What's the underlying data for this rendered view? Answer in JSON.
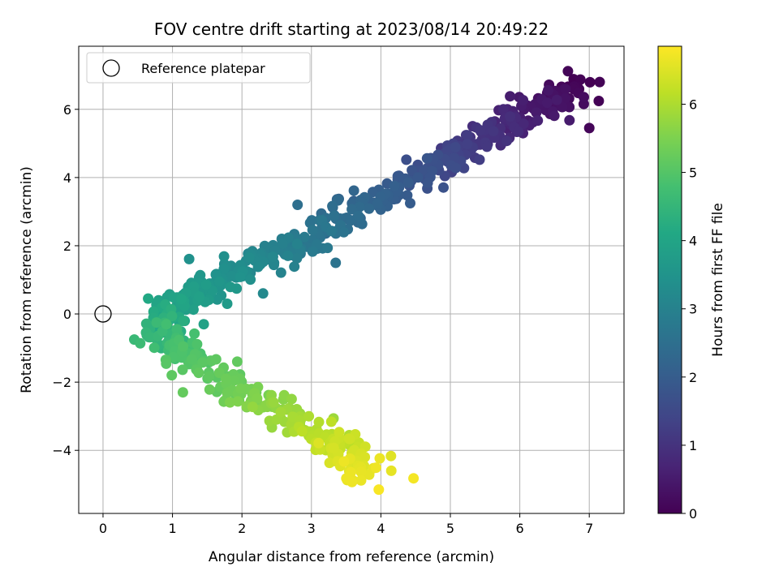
{
  "chart_data": {
    "type": "scatter",
    "title": "FOV centre drift starting at 2023/08/14 20:49:22",
    "xlabel": "Angular distance from reference (arcmin)",
    "ylabel": "Rotation from reference (arcmin)",
    "xlim": [
      -0.35,
      7.5
    ],
    "ylim": [
      -5.85,
      7.85
    ],
    "x_ticks": [
      0,
      1,
      2,
      3,
      4,
      5,
      6,
      7
    ],
    "y_ticks": [
      -4,
      -2,
      0,
      2,
      4,
      6
    ],
    "grid": true,
    "colormap": "viridis",
    "colorbar": {
      "label": "Hours from first FF file",
      "range": [
        0,
        6.85
      ],
      "ticks": [
        0,
        1,
        2,
        3,
        4,
        5,
        6
      ]
    },
    "legend": {
      "placement": "top-left",
      "entries": [
        {
          "label": "Reference platepar",
          "marker": "open-circle",
          "color": "#000000"
        }
      ]
    },
    "reference_point": {
      "x": 0,
      "y": 0
    },
    "track": {
      "description_points": "trajectory knots used to lay out the drift; each point [x_arcmin, y_arcmin, hours]",
      "knots": [
        [
          6.8,
          6.7,
          0.0
        ],
        [
          6.5,
          6.3,
          0.3
        ],
        [
          6.0,
          5.8,
          0.6
        ],
        [
          5.6,
          5.4,
          0.9
        ],
        [
          5.2,
          4.9,
          1.2
        ],
        [
          4.8,
          4.3,
          1.6
        ],
        [
          4.3,
          3.8,
          1.9
        ],
        [
          3.8,
          3.2,
          2.2
        ],
        [
          3.3,
          2.6,
          2.5
        ],
        [
          2.8,
          2.0,
          2.8
        ],
        [
          2.3,
          1.6,
          3.1
        ],
        [
          1.8,
          1.1,
          3.4
        ],
        [
          1.4,
          0.6,
          3.7
        ],
        [
          1.0,
          0.2,
          4.0
        ],
        [
          0.8,
          -0.4,
          4.4
        ],
        [
          1.1,
          -1.0,
          4.8
        ],
        [
          1.5,
          -1.7,
          5.1
        ],
        [
          2.0,
          -2.4,
          5.4
        ],
        [
          2.6,
          -2.9,
          5.8
        ],
        [
          3.1,
          -3.5,
          6.1
        ],
        [
          3.5,
          -4.2,
          6.4
        ],
        [
          3.8,
          -4.7,
          6.7
        ]
      ]
    },
    "n_points": 720,
    "outliers": [
      [
        7.0,
        5.45,
        0.1
      ],
      [
        7.15,
        6.8,
        0.05
      ],
      [
        3.35,
        1.5,
        2.6
      ],
      [
        2.8,
        3.2,
        2.5
      ],
      [
        0.45,
        -0.75,
        4.6
      ],
      [
        4.15,
        -4.6,
        6.6
      ],
      [
        4.47,
        -4.82,
        6.75
      ],
      [
        3.97,
        -5.15,
        6.8
      ],
      [
        1.15,
        -2.3,
        5.2
      ],
      [
        1.45,
        -0.3,
        3.9
      ],
      [
        0.65,
        0.45,
        4.1
      ]
    ]
  }
}
